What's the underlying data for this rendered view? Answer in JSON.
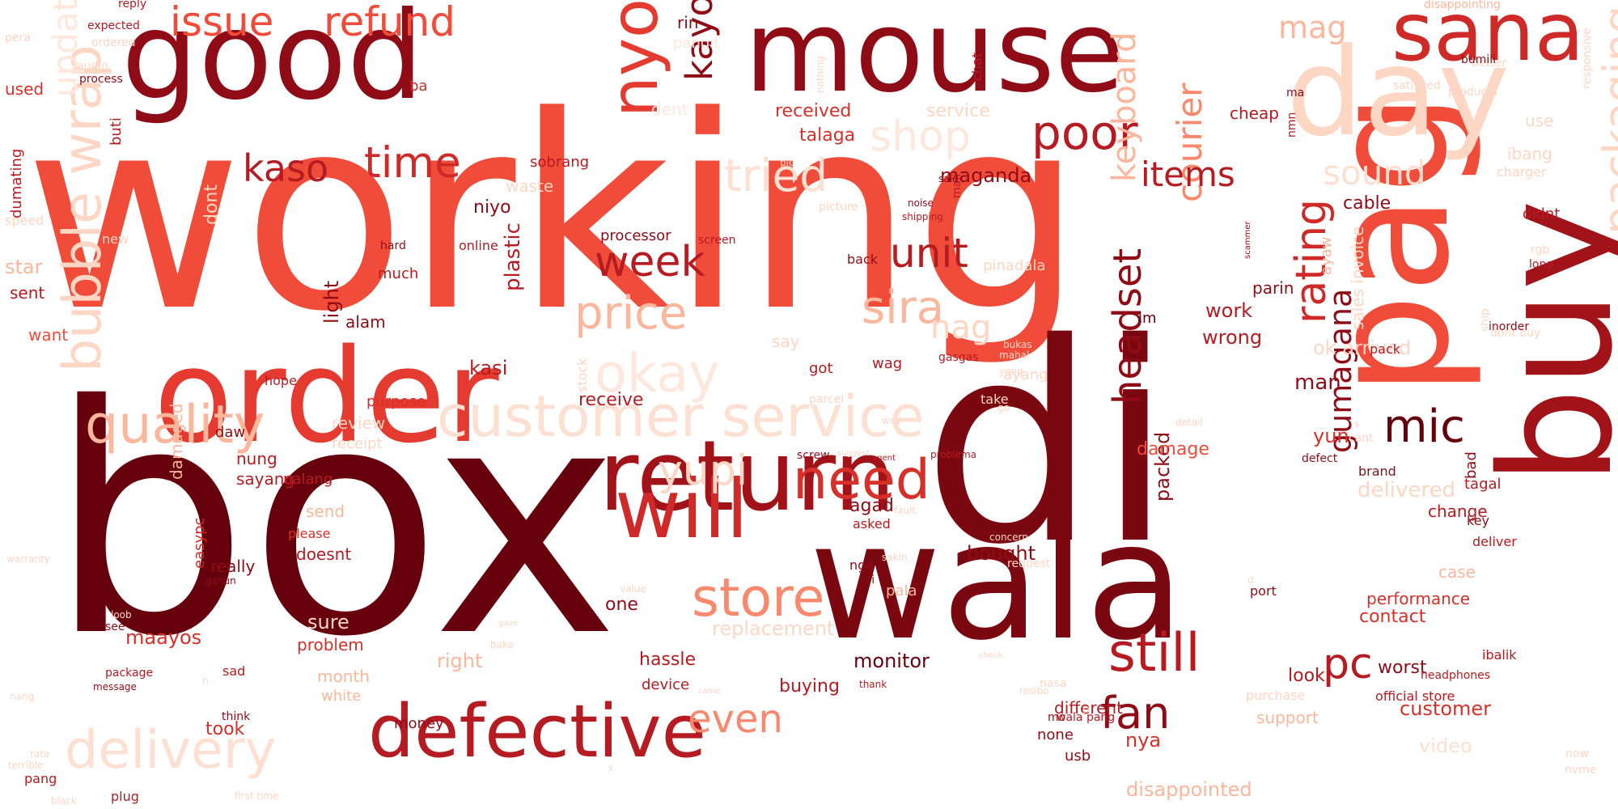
{
  "word_cloud": {
    "palette": [
      "#67000d",
      "#8f0c17",
      "#b51b20",
      "#d7302a",
      "#f14c3a",
      "#f9886c",
      "#fcb69b",
      "#fdd6c4",
      "#fee8dd"
    ],
    "words": [
      {
        "text": "working",
        "color": "#f14c3a"
      },
      {
        "text": "box",
        "color": "#67000d"
      },
      {
        "text": "di",
        "color": "#7b0711"
      },
      {
        "text": "pag",
        "color": "#f14c3a"
      },
      {
        "text": "wala",
        "color": "#7b0711"
      },
      {
        "text": "order",
        "color": "#e53a30"
      },
      {
        "text": "good",
        "color": "#8f0c17"
      },
      {
        "text": "mouse",
        "color": "#8f0c17"
      },
      {
        "text": "buy",
        "color": "#a11219"
      },
      {
        "text": "day",
        "color": "#fdd6c4"
      },
      {
        "text": "return",
        "color": "#a11219"
      },
      {
        "text": "defective",
        "color": "#b51b20"
      },
      {
        "text": "will",
        "color": "#cf2a28"
      },
      {
        "text": "customer service",
        "color": "#fde0d1"
      },
      {
        "text": "sana",
        "color": "#cf2a28"
      },
      {
        "text": "bubble wrap",
        "color": "#fdd6c4"
      },
      {
        "text": "delivery",
        "color": "#fde0d1"
      },
      {
        "text": "packaging",
        "color": "#fdd6c4"
      },
      {
        "text": "quality",
        "color": "#fcb69b"
      },
      {
        "text": "store",
        "color": "#f9886c"
      },
      {
        "text": "need",
        "color": "#d7302a"
      },
      {
        "text": "still",
        "color": "#b51b20"
      },
      {
        "text": "okay",
        "color": "#fee8dd"
      },
      {
        "text": "nyo",
        "color": "#e53a30"
      },
      {
        "text": "price",
        "color": "#fcb69b"
      },
      {
        "text": "sira",
        "color": "#fcb69b"
      },
      {
        "text": "poor",
        "color": "#b51b20"
      },
      {
        "text": "update",
        "color": "#fee8dd"
      },
      {
        "text": "shop",
        "color": "#fee8dd"
      },
      {
        "text": "tried",
        "color": "#fde0d1"
      },
      {
        "text": "issue",
        "color": "#f14c3a"
      },
      {
        "text": "refund",
        "color": "#f14c3a"
      },
      {
        "text": "kaso",
        "color": "#b51b20"
      },
      {
        "text": "time",
        "color": "#cf2a28"
      },
      {
        "text": "unit",
        "color": "#b51b20"
      },
      {
        "text": "week",
        "color": "#b51b20"
      },
      {
        "text": "yupi",
        "color": "#fdd6c4"
      },
      {
        "text": "mic",
        "color": "#67000d"
      },
      {
        "text": "pc",
        "color": "#b51b20"
      },
      {
        "text": "fan",
        "color": "#8f0c17"
      },
      {
        "text": "headset",
        "color": "#8f0c17"
      },
      {
        "text": "rating",
        "color": "#cf2a28"
      },
      {
        "text": "courier",
        "color": "#f9886c"
      },
      {
        "text": "keyboard",
        "color": "#fcb69b"
      },
      {
        "text": "gumagana",
        "color": "#8f0c17"
      },
      {
        "text": "items",
        "color": "#b51b20"
      },
      {
        "text": "sound",
        "color": "#fde0d1"
      },
      {
        "text": "kayo",
        "color": "#8f0c17"
      },
      {
        "text": "even",
        "color": "#f9886c"
      },
      {
        "text": "mag",
        "color": "#fcb69b"
      },
      {
        "text": "nag",
        "color": "#fdd6c4"
      },
      {
        "text": "maganda",
        "color": "#8f0c17"
      },
      {
        "text": "rin",
        "color": "#8f0c17"
      },
      {
        "text": "pangit",
        "color": "#fee8dd"
      },
      {
        "text": "dent",
        "color": "#fee8dd"
      },
      {
        "text": "received",
        "color": "#d7302a"
      },
      {
        "text": "talaga",
        "color": "#d7302a"
      },
      {
        "text": "service",
        "color": "#fdd6c4"
      },
      {
        "text": "sobrang",
        "color": "#b51b20"
      },
      {
        "text": "niyo",
        "color": "#8f0c17"
      },
      {
        "text": "waste",
        "color": "#fdd6c4"
      },
      {
        "text": "processor",
        "color": "#8f0c17"
      },
      {
        "text": "screen",
        "color": "#b51b20"
      },
      {
        "text": "online",
        "color": "#b51b20"
      },
      {
        "text": "hard",
        "color": "#8f0c17"
      },
      {
        "text": "much",
        "color": "#b51b20"
      },
      {
        "text": "light",
        "color": "#8f0c17"
      },
      {
        "text": "alam",
        "color": "#8f0c17"
      },
      {
        "text": "plastic",
        "color": "#b51b20"
      },
      {
        "text": "review",
        "color": "#fdd6c4"
      },
      {
        "text": "receipt",
        "color": "#fdd6c4"
      },
      {
        "text": "purpose",
        "color": "#d7302a"
      },
      {
        "text": "receive",
        "color": "#b51b20"
      },
      {
        "text": "kasi",
        "color": "#b51b20"
      },
      {
        "text": "nung",
        "color": "#b51b20"
      },
      {
        "text": "sayang",
        "color": "#b51b20"
      },
      {
        "text": "daw",
        "color": "#8f0c17"
      },
      {
        "text": "damaged",
        "color": "#fcb69b"
      },
      {
        "text": "hope",
        "color": "#b51b20"
      },
      {
        "text": "dont",
        "color": "#fdd6c4"
      },
      {
        "text": "star",
        "color": "#fcb69b"
      },
      {
        "text": "sent",
        "color": "#b51b20"
      },
      {
        "text": "want",
        "color": "#f14c3a"
      },
      {
        "text": "speed",
        "color": "#fdd6c4"
      },
      {
        "text": "new",
        "color": "#fdd6c4"
      },
      {
        "text": "used",
        "color": "#d7302a"
      },
      {
        "text": "dumating",
        "color": "#b51b20"
      },
      {
        "text": "buti",
        "color": "#b51b20"
      },
      {
        "text": "ba",
        "color": "#cf2a28"
      },
      {
        "text": "process",
        "color": "#8f0c17"
      },
      {
        "text": "audio",
        "color": "#fdd6c4"
      },
      {
        "text": "ordered",
        "color": "#fdd6c4"
      },
      {
        "text": "expected",
        "color": "#b51b20"
      },
      {
        "text": "reply",
        "color": "#b51b20"
      },
      {
        "text": "pera",
        "color": "#fdd6c4"
      },
      {
        "text": "easypc",
        "color": "#cf2a28"
      },
      {
        "text": "really",
        "color": "#8f0c17"
      },
      {
        "text": "doesnt",
        "color": "#b51b20"
      },
      {
        "text": "please",
        "color": "#d7302a"
      },
      {
        "text": "send",
        "color": "#fcb69b"
      },
      {
        "text": "nalang",
        "color": "#b51b20"
      },
      {
        "text": "sure",
        "color": "#fdd6c4"
      },
      {
        "text": "problem",
        "color": "#d7302a"
      },
      {
        "text": "month",
        "color": "#fcb69b"
      },
      {
        "text": "white",
        "color": "#fcb69b"
      },
      {
        "text": "maayos",
        "color": "#d7302a"
      },
      {
        "text": "right",
        "color": "#fcb69b"
      },
      {
        "text": "took",
        "color": "#d7302a"
      },
      {
        "text": "money",
        "color": "#8f0c17"
      },
      {
        "text": "device",
        "color": "#b51b20"
      },
      {
        "text": "hassle",
        "color": "#b51b20"
      },
      {
        "text": "one",
        "color": "#8f0c17"
      },
      {
        "text": "sad",
        "color": "#b51b20"
      },
      {
        "text": "see",
        "color": "#8f0c17"
      },
      {
        "text": "package",
        "color": "#b51b20"
      },
      {
        "text": "message",
        "color": "#8f0c17"
      },
      {
        "text": "think",
        "color": "#8f0c17"
      },
      {
        "text": "nang",
        "color": "#fdd6c4"
      },
      {
        "text": "terrible",
        "color": "#fdd6c4"
      },
      {
        "text": "pang",
        "color": "#b51b20"
      },
      {
        "text": "plug",
        "color": "#b51b20"
      },
      {
        "text": "black",
        "color": "#fdd6c4"
      },
      {
        "text": "rate",
        "color": "#fdd6c4"
      },
      {
        "text": "loob",
        "color": "#fdd6c4"
      },
      {
        "text": "ganun",
        "color": "#8f0c17"
      },
      {
        "text": "warranty",
        "color": "#fdd6c4"
      },
      {
        "text": "agad",
        "color": "#8f0c17"
      },
      {
        "text": "asked",
        "color": "#b51b20"
      },
      {
        "text": "nga",
        "color": "#8f0c17"
      },
      {
        "text": "si",
        "color": "#8f0c17"
      },
      {
        "text": "pala",
        "color": "#fcb69b"
      },
      {
        "text": "fault",
        "color": "#fdd6c4"
      },
      {
        "text": "sakin",
        "color": "#fdd6c4"
      },
      {
        "text": "value",
        "color": "#fdd6c4"
      },
      {
        "text": "gave",
        "color": "#fdd6c4"
      },
      {
        "text": "baka",
        "color": "#fdd6c4"
      },
      {
        "text": "came",
        "color": "#fdd6c4"
      },
      {
        "text": "thank",
        "color": "#b51b20"
      },
      {
        "text": "replacement",
        "color": "#fdd6c4"
      },
      {
        "text": "buying",
        "color": "#b51b20"
      },
      {
        "text": "monitor",
        "color": "#67000d"
      },
      {
        "text": "bought",
        "color": "#8f0c17"
      },
      {
        "text": "packed",
        "color": "#8f0c17"
      },
      {
        "text": "damage",
        "color": "#f14c3a"
      },
      {
        "text": "delivered",
        "color": "#fdd6c4"
      },
      {
        "text": "yun",
        "color": "#d7302a"
      },
      {
        "text": "man",
        "color": "#8f0c17"
      },
      {
        "text": "sales invoice",
        "color": "#fdd6c4"
      },
      {
        "text": "work",
        "color": "#b51b20"
      },
      {
        "text": "wrong",
        "color": "#b51b20"
      },
      {
        "text": "ok arrived",
        "color": "#fdd6c4"
      },
      {
        "text": "parin",
        "color": "#8f0c17"
      },
      {
        "text": "im",
        "color": "#67000d"
      },
      {
        "text": "cable",
        "color": "#8f0c17"
      },
      {
        "text": "cheap",
        "color": "#b51b20"
      },
      {
        "text": "ma",
        "color": "#8f0c17"
      },
      {
        "text": "nmn",
        "color": "#b51b20"
      },
      {
        "text": "chat",
        "color": "#b51b20"
      },
      {
        "text": "noise",
        "color": "#8f0c17"
      },
      {
        "text": "mali",
        "color": "#b51b20"
      },
      {
        "text": "picture",
        "color": "#fdd6c4"
      },
      {
        "text": "shipping",
        "color": "#b51b20"
      },
      {
        "text": "scammer",
        "color": "#8f0c17"
      },
      {
        "text": "ayaw",
        "color": "#fcb69b"
      },
      {
        "text": "pinadala",
        "color": "#fdd6c4"
      },
      {
        "text": "wag",
        "color": "#b51b20"
      },
      {
        "text": "got",
        "color": "#b51b20"
      },
      {
        "text": "back",
        "color": "#8f0c17"
      },
      {
        "text": "say",
        "color": "#fdd6c4"
      },
      {
        "text": "stock",
        "color": "#fdd6c4"
      },
      {
        "text": "gasgas",
        "color": "#b51b20"
      },
      {
        "text": "ayang",
        "color": "#fdd6c4"
      },
      {
        "text": "take",
        "color": "#fdd6c4"
      },
      {
        "text": "go",
        "color": "#fdd6c4"
      },
      {
        "text": "detail",
        "color": "#fdd6c4"
      },
      {
        "text": "problema",
        "color": "#b51b20"
      },
      {
        "text": "suggest",
        "color": "#fdd6c4"
      },
      {
        "text": "agent",
        "color": "#b51b20"
      },
      {
        "text": "screw",
        "color": "#8f0c17"
      },
      {
        "text": "way",
        "color": "#fdd6c4"
      },
      {
        "text": "parcel",
        "color": "#fdd6c4"
      },
      {
        "text": "yong",
        "color": "#fdd6c4"
      },
      {
        "text": "mahal",
        "color": "#fdd6c4"
      },
      {
        "text": "bukas",
        "color": "#fdd6c4"
      },
      {
        "text": "said",
        "color": "#8f0c17"
      },
      {
        "text": "check",
        "color": "#fdd6c4"
      },
      {
        "text": "request",
        "color": "#fdd6c4"
      },
      {
        "text": "concern",
        "color": "#fdd6c4"
      },
      {
        "text": "resibo",
        "color": "#fdd6c4"
      },
      {
        "text": "nasa",
        "color": "#fdd6c4"
      },
      {
        "text": "purchase",
        "color": "#fdd6c4"
      },
      {
        "text": "mo",
        "color": "#8f0c17"
      },
      {
        "text": "none",
        "color": "#8f0c17"
      },
      {
        "text": "wala pang",
        "color": "#b51b20"
      },
      {
        "text": "different",
        "color": "#b51b20"
      },
      {
        "text": "usb",
        "color": "#8f0c17"
      },
      {
        "text": "nya",
        "color": "#d7302a"
      },
      {
        "text": "disappointed",
        "color": "#fcb69b"
      },
      {
        "text": "look",
        "color": "#b51b20"
      },
      {
        "text": "support",
        "color": "#fcb69b"
      },
      {
        "text": "video",
        "color": "#fde0d1"
      },
      {
        "text": "official store",
        "color": "#b51b20"
      },
      {
        "text": "worst",
        "color": "#8f0c17"
      },
      {
        "text": "customer",
        "color": "#d7302a"
      },
      {
        "text": "headphones",
        "color": "#b51b20"
      },
      {
        "text": "ibalik",
        "color": "#b51b20"
      },
      {
        "text": "contact",
        "color": "#d7302a"
      },
      {
        "text": "performance",
        "color": "#d7302a"
      },
      {
        "text": "case",
        "color": "#fcb69b"
      },
      {
        "text": "deliver",
        "color": "#b51b20"
      },
      {
        "text": "key",
        "color": "#8f0c17"
      },
      {
        "text": "port",
        "color": "#8f0c17"
      },
      {
        "text": "d",
        "color": "#fdd6c4"
      },
      {
        "text": "change",
        "color": "#b51b20"
      },
      {
        "text": "tagal",
        "color": "#b51b20"
      },
      {
        "text": "bad",
        "color": "#8f0c17"
      },
      {
        "text": "brand",
        "color": "#8f0c17"
      },
      {
        "text": "defect",
        "color": "#8f0c17"
      },
      {
        "text": "s",
        "color": "#fdd6c4"
      },
      {
        "text": "cant",
        "color": "#fdd6c4"
      },
      {
        "text": "pack",
        "color": "#b51b20"
      },
      {
        "text": "dont buy",
        "color": "#fdd6c4"
      },
      {
        "text": "inorder",
        "color": "#8f0c17"
      },
      {
        "text": "ship",
        "color": "#fdd6c4"
      },
      {
        "text": "long",
        "color": "#b51b20"
      },
      {
        "text": "rgb",
        "color": "#fdd6c4"
      },
      {
        "text": "didnt",
        "color": "#b51b20"
      },
      {
        "text": "charger",
        "color": "#fdd6c4"
      },
      {
        "text": "ibang",
        "color": "#fdd6c4"
      },
      {
        "text": "use",
        "color": "#fdd6c4"
      },
      {
        "text": "responsive",
        "color": "#fdd6c4"
      },
      {
        "text": "products",
        "color": "#fdd6c4"
      },
      {
        "text": "satisfied",
        "color": "#fdd6c4"
      },
      {
        "text": "better",
        "color": "#fdd6c4"
      },
      {
        "text": "bumili",
        "color": "#8f0c17"
      },
      {
        "text": "disappointing",
        "color": "#fcb69b"
      },
      {
        "text": "now",
        "color": "#fdd6c4"
      },
      {
        "text": "nvme",
        "color": "#fdd6c4"
      },
      {
        "text": "x",
        "color": "#fdd6c4"
      },
      {
        "text": "p",
        "color": "#fdd6c4"
      },
      {
        "text": "n",
        "color": "#fdd6c4"
      },
      {
        "text": "pic",
        "color": "#fdd6c4"
      },
      {
        "text": "nothing",
        "color": "#fdd6c4"
      },
      {
        "text": "first time",
        "color": "#fdd6c4"
      }
    ]
  }
}
